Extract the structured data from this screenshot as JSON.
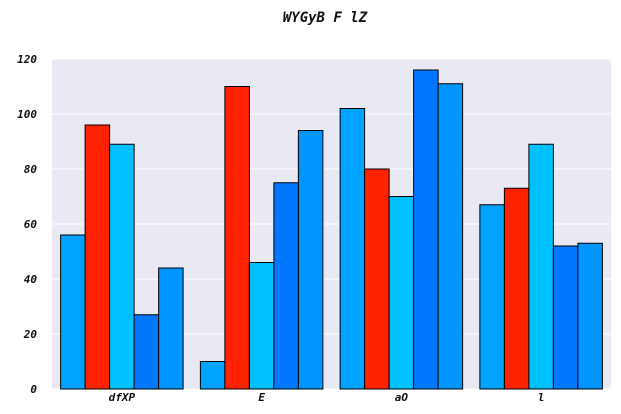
{
  "chart_data": {
    "type": "bar",
    "title": "WYGyB F lZ",
    "xlabel": "",
    "ylabel": "",
    "categories": [
      "dfXP",
      "E",
      "aO",
      "l"
    ],
    "ylim": [
      0,
      120
    ],
    "yticks": [
      0,
      20,
      40,
      60,
      80,
      100,
      120
    ],
    "grid": true,
    "legend": "none",
    "series": [
      {
        "color": "#00a3ff",
        "values": [
          56,
          10,
          102,
          67
        ]
      },
      {
        "color": "#ff2200",
        "values": [
          96,
          110,
          80,
          73
        ]
      },
      {
        "color": "#00c0ff",
        "values": [
          89,
          46,
          70,
          89
        ]
      },
      {
        "color": "#0077ff",
        "values": [
          27,
          75,
          116,
          52
        ]
      },
      {
        "color": "#0095ff",
        "values": [
          44,
          94,
          111,
          53
        ]
      }
    ],
    "plot_background": "#e9e9f4"
  }
}
